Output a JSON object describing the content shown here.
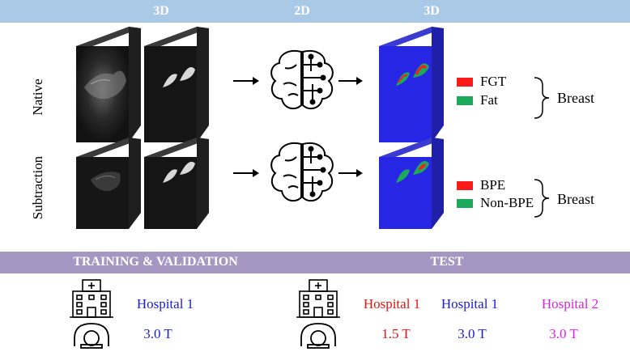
{
  "header": {
    "left_label": "3D",
    "mid_label": "2D",
    "right_label": "3D",
    "color": "#a9c9e7"
  },
  "rows": {
    "native_label": "Native",
    "subtraction_label": "Subtraction"
  },
  "legend_native": {
    "items": [
      {
        "label": "FGT",
        "color": "#ff1a1a"
      },
      {
        "label": "Fat",
        "color": "#1aaa5a"
      }
    ],
    "group_label": "Breast"
  },
  "legend_subtraction": {
    "items": [
      {
        "label": "BPE",
        "color": "#ff1a1a"
      },
      {
        "label": "Non-BPE",
        "color": "#1aaa5a"
      }
    ],
    "group_label": "Breast"
  },
  "bottom": {
    "train_label": "TRAINING & VALIDATION",
    "test_label": "TEST",
    "color": "#a597c1",
    "train_hospital": {
      "name": "Hospital 1",
      "field": "3.0 T",
      "color": "#1a1adf"
    },
    "test_sites": [
      {
        "name": "Hospital 1",
        "field": "1.5 T",
        "color": "#ee1111"
      },
      {
        "name": "Hospital 1",
        "field": "3.0 T",
        "color": "#1a1adf"
      },
      {
        "name": "Hospital 2",
        "field": "3.0 T",
        "color": "#e020e0"
      }
    ]
  },
  "icons": [
    "mri-volume-icon",
    "mask-volume-icon",
    "brain-network-icon",
    "arrow-right-icon",
    "segmentation-output-icon",
    "hospital-icon",
    "mri-scanner-icon",
    "curly-brace-icon"
  ]
}
